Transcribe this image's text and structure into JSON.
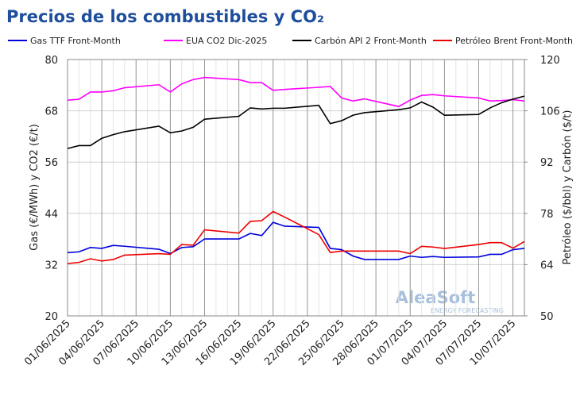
{
  "chart_data": {
    "type": "line",
    "title": "Precios de los combustibles y CO₂",
    "y_label": "Gas (€/MWh) y CO2 (€/t)",
    "y2_label": "Petróleo ($/bbl) y Carbón ($/t)",
    "watermark": {
      "name": "AleaSoft",
      "tagline": "ENERGY FORECASTING"
    },
    "x": [
      "01/06/2025",
      "02/06/2025",
      "03/06/2025",
      "04/06/2025",
      "05/06/2025",
      "06/06/2025",
      "09/06/2025",
      "10/06/2025",
      "11/06/2025",
      "12/06/2025",
      "13/06/2025",
      "16/06/2025",
      "17/06/2025",
      "18/06/2025",
      "19/06/2025",
      "20/06/2025",
      "23/06/2025",
      "24/06/2025",
      "25/06/2025",
      "26/06/2025",
      "27/06/2025",
      "30/06/2025",
      "01/07/2025",
      "02/07/2025",
      "03/07/2025",
      "04/07/2025",
      "07/07/2025",
      "08/07/2025",
      "09/07/2025",
      "10/07/2025",
      "11/07/2025"
    ],
    "xlim": [
      "01/06/2025",
      "11/07/2025"
    ],
    "xticks": [
      "01/06/2025",
      "04/06/2025",
      "07/06/2025",
      "10/06/2025",
      "13/06/2025",
      "16/06/2025",
      "19/06/2025",
      "22/06/2025",
      "25/06/2025",
      "28/06/2025",
      "01/07/2025",
      "04/07/2025",
      "07/07/2025",
      "10/07/2025"
    ],
    "ylim": [
      20,
      80
    ],
    "yticks": [
      20,
      32,
      44,
      56,
      68,
      80
    ],
    "y2lim": [
      50,
      120
    ],
    "y2ticks": [
      50,
      64,
      78,
      92,
      106,
      120
    ],
    "grid": true,
    "legend": "top",
    "series": [
      {
        "name": "Gas TTF Front-Month",
        "color": "#0000dd",
        "values": [
          34.8,
          35.0,
          36.0,
          35.8,
          36.5,
          36.3,
          35.6,
          34.6,
          36.0,
          36.2,
          38.0,
          38.0,
          39.3,
          38.8,
          41.9,
          41.0,
          40.7,
          35.8,
          35.5,
          34.0,
          33.2,
          33.2,
          34.0,
          33.7,
          33.9,
          33.7,
          33.8,
          34.4,
          34.4,
          35.5,
          35.8
        ]
      },
      {
        "name": "EUA CO2 Dic-2025",
        "color": "#ff00ff",
        "values": [
          70.5,
          70.7,
          72.4,
          72.4,
          72.7,
          73.4,
          74.1,
          72.4,
          74.3,
          75.3,
          75.8,
          75.3,
          74.6,
          74.6,
          72.8,
          73.0,
          73.5,
          73.7,
          71.0,
          70.3,
          70.8,
          69.0,
          70.5,
          71.6,
          71.8,
          71.5,
          71.0,
          70.3,
          70.4,
          70.6,
          70.3
        ]
      },
      {
        "name": "Carbón API 2 Front-Month",
        "color": "#000000",
        "axis": "y2",
        "values": [
          95.7,
          96.5,
          96.5,
          98.5,
          99.5,
          100.3,
          101.8,
          100.0,
          100.5,
          101.5,
          103.7,
          104.5,
          106.8,
          106.5,
          106.7,
          106.7,
          107.5,
          102.5,
          103.3,
          104.8,
          105.5,
          106.3,
          106.8,
          108.4,
          107.0,
          104.8,
          105.0,
          106.8,
          108.2,
          109.2,
          110.0
        ]
      },
      {
        "name": "Petróleo Brent Front-Month",
        "color": "#ee0000",
        "axis": "y2",
        "values": [
          64.3,
          64.6,
          65.6,
          65.0,
          65.4,
          66.6,
          67.0,
          66.8,
          69.5,
          69.3,
          73.5,
          72.6,
          75.8,
          76.0,
          78.5,
          77.0,
          72.2,
          67.3,
          67.7,
          67.7,
          67.7,
          67.7,
          67.0,
          69.0,
          68.8,
          68.4,
          69.5,
          70.0,
          70.0,
          68.5,
          70.3
        ]
      }
    ]
  }
}
